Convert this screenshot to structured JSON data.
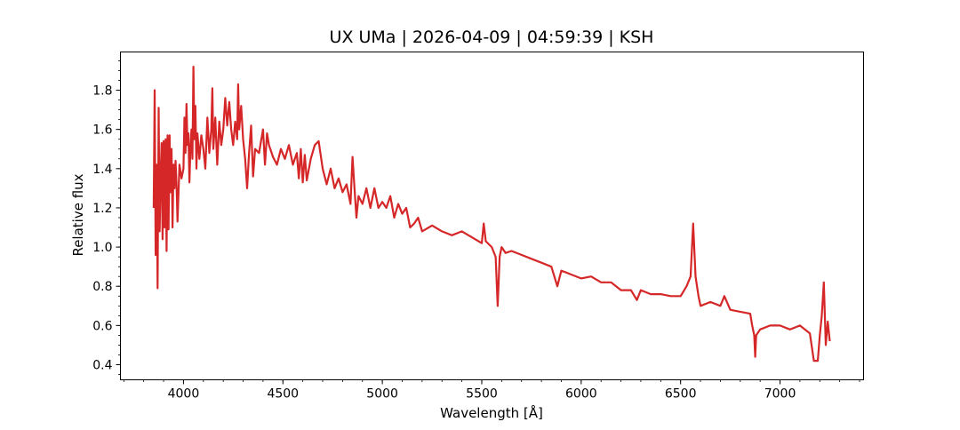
{
  "chart_data": {
    "type": "line",
    "title": "UX UMa | 2026-04-09 | 04:59:39 | KSH",
    "xlabel": "Wavelength [Å]",
    "ylabel": "Relative flux",
    "xlim": [
      3683,
      7420
    ],
    "ylim": [
      0.323,
      1.995
    ],
    "xticks": [
      4000,
      4500,
      5000,
      5500,
      6000,
      6500,
      7000
    ],
    "xtick_labels": [
      "4000",
      "4500",
      "5000",
      "5500",
      "6000",
      "6500",
      "7000"
    ],
    "yticks": [
      0.4,
      0.6,
      0.8,
      1.0,
      1.2,
      1.4,
      1.6,
      1.8
    ],
    "ytick_labels": [
      "0.4",
      "0.6",
      "0.8",
      "1.0",
      "1.2",
      "1.4",
      "1.6",
      "1.8"
    ],
    "grid": false,
    "line_color": "#d62728",
    "series": [
      {
        "x": [
          3850,
          3855,
          3860,
          3865,
          3870,
          3875,
          3880,
          3885,
          3890,
          3895,
          3900,
          3905,
          3910,
          3915,
          3920,
          3925,
          3930,
          3935,
          3940,
          3945,
          3950,
          3955,
          3960,
          3965,
          3970,
          3980,
          3990,
          4000,
          4005,
          4010,
          4015,
          4020,
          4025,
          4030,
          4035,
          4040,
          4045,
          4050,
          4055,
          4060,
          4065,
          4070,
          4080,
          4090,
          4100,
          4110,
          4120,
          4130,
          4140,
          4145,
          4150,
          4160,
          4170,
          4180,
          4190,
          4200,
          4210,
          4220,
          4230,
          4240,
          4250,
          4260,
          4270,
          4275,
          4280,
          4290,
          4300,
          4310,
          4320,
          4330,
          4340,
          4350,
          4360,
          4380,
          4400,
          4410,
          4420,
          4430,
          4450,
          4470,
          4490,
          4510,
          4530,
          4550,
          4570,
          4580,
          4590,
          4600,
          4610,
          4620,
          4640,
          4660,
          4680,
          4700,
          4720,
          4740,
          4760,
          4780,
          4800,
          4820,
          4840,
          4850,
          4860,
          4870,
          4880,
          4900,
          4920,
          4940,
          4960,
          4980,
          5000,
          5020,
          5040,
          5060,
          5080,
          5100,
          5120,
          5140,
          5160,
          5180,
          5200,
          5250,
          5300,
          5350,
          5400,
          5450,
          5500,
          5510,
          5520,
          5550,
          5570,
          5580,
          5590,
          5600,
          5620,
          5650,
          5700,
          5750,
          5800,
          5850,
          5880,
          5900,
          5950,
          6000,
          6050,
          6100,
          6150,
          6200,
          6250,
          6280,
          6300,
          6350,
          6400,
          6450,
          6500,
          6530,
          6550,
          6563,
          6575,
          6590,
          6600,
          6650,
          6700,
          6720,
          6750,
          6800,
          6850,
          6860,
          6870,
          6875,
          6880,
          6900,
          6950,
          7000,
          7050,
          7100,
          7150,
          7170,
          7190,
          7200,
          7210,
          7220,
          7230,
          7240,
          7250
        ],
        "y": [
          1.2,
          1.8,
          0.96,
          1.42,
          0.79,
          1.71,
          1.08,
          1.35,
          1.53,
          1.04,
          1.54,
          1.1,
          1.55,
          0.98,
          1.57,
          1.09,
          1.57,
          1.28,
          1.5,
          1.1,
          1.42,
          1.3,
          1.44,
          1.32,
          1.13,
          1.42,
          1.35,
          1.4,
          1.66,
          1.48,
          1.73,
          1.52,
          1.58,
          1.33,
          1.5,
          1.6,
          1.45,
          1.92,
          1.55,
          1.72,
          1.4,
          1.58,
          1.45,
          1.57,
          1.5,
          1.4,
          1.66,
          1.48,
          1.6,
          1.81,
          1.5,
          1.66,
          1.42,
          1.64,
          1.52,
          1.6,
          1.76,
          1.62,
          1.74,
          1.6,
          1.52,
          1.64,
          1.55,
          1.83,
          1.6,
          1.72,
          1.55,
          1.45,
          1.3,
          1.48,
          1.62,
          1.36,
          1.5,
          1.48,
          1.6,
          1.42,
          1.58,
          1.52,
          1.46,
          1.42,
          1.5,
          1.45,
          1.52,
          1.42,
          1.48,
          1.35,
          1.5,
          1.33,
          1.47,
          1.34,
          1.45,
          1.52,
          1.54,
          1.4,
          1.32,
          1.4,
          1.3,
          1.35,
          1.28,
          1.32,
          1.22,
          1.46,
          1.3,
          1.15,
          1.26,
          1.22,
          1.3,
          1.2,
          1.3,
          1.2,
          1.23,
          1.2,
          1.26,
          1.15,
          1.22,
          1.17,
          1.2,
          1.1,
          1.12,
          1.15,
          1.08,
          1.11,
          1.08,
          1.06,
          1.08,
          1.05,
          1.02,
          1.12,
          1.03,
          1.0,
          0.95,
          0.7,
          0.95,
          1.0,
          0.97,
          0.98,
          0.96,
          0.94,
          0.92,
          0.9,
          0.8,
          0.88,
          0.86,
          0.84,
          0.85,
          0.82,
          0.82,
          0.78,
          0.78,
          0.73,
          0.78,
          0.76,
          0.76,
          0.75,
          0.75,
          0.8,
          0.85,
          1.12,
          0.85,
          0.75,
          0.7,
          0.72,
          0.7,
          0.75,
          0.68,
          0.67,
          0.66,
          0.6,
          0.55,
          0.44,
          0.55,
          0.58,
          0.6,
          0.6,
          0.58,
          0.6,
          0.56,
          0.42,
          0.42,
          0.55,
          0.65,
          0.82,
          0.5,
          0.62,
          0.52
        ]
      }
    ]
  }
}
